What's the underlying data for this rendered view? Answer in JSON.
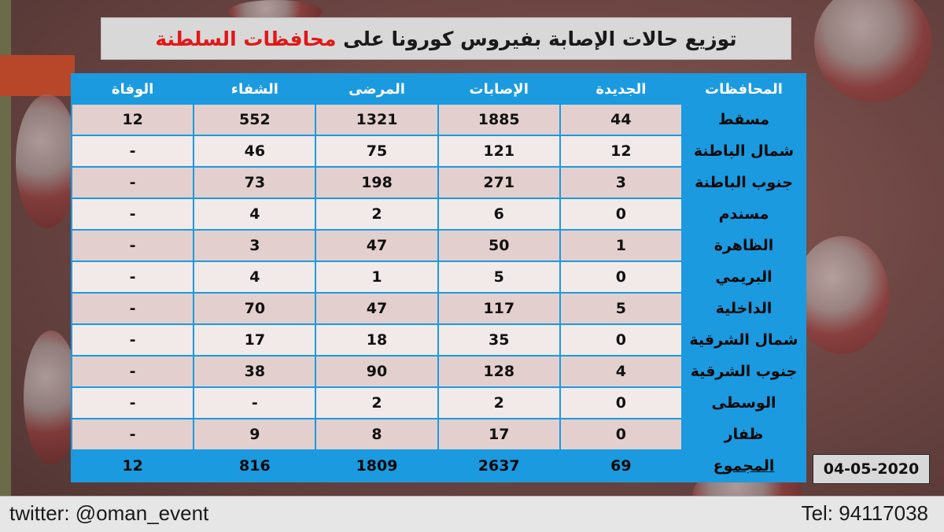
{
  "title": {
    "main": "توزيع حالات الإصابة بفيروس كورونا على",
    "highlight": "محافظات السلطنة"
  },
  "table": {
    "headers": [
      "المحافظات",
      "الجديدة",
      "الإصابات",
      "المرضى",
      "الشفاء",
      "الوفاة"
    ],
    "rows": [
      [
        "مسقط",
        "44",
        "1885",
        "1321",
        "552",
        "12"
      ],
      [
        "شمال الباطنة",
        "12",
        "121",
        "75",
        "46",
        "-"
      ],
      [
        "جنوب الباطنة",
        "3",
        "271",
        "198",
        "73",
        "-"
      ],
      [
        "مسندم",
        "0",
        "6",
        "2",
        "4",
        "-"
      ],
      [
        "الظاهرة",
        "1",
        "50",
        "47",
        "3",
        "-"
      ],
      [
        "البريمي",
        "0",
        "5",
        "1",
        "4",
        "-"
      ],
      [
        "الداخلية",
        "5",
        "117",
        "47",
        "70",
        "-"
      ],
      [
        "شمال الشرقية",
        "0",
        "35",
        "18",
        "17",
        "-"
      ],
      [
        "جنوب الشرقية",
        "4",
        "128",
        "90",
        "38",
        "-"
      ],
      [
        "الوسطى",
        "0",
        "2",
        "2",
        "-",
        "-"
      ],
      [
        "ظفار",
        "0",
        "17",
        "8",
        "9",
        "-"
      ]
    ],
    "total": [
      "المجموع",
      "69",
      "2637",
      "1809",
      "816",
      "12"
    ]
  },
  "date": "04-05-2020",
  "footer": {
    "twitter": "twitter: @oman_event",
    "tel": "Tel: 94117038"
  },
  "colors": {
    "table_blue": "#1b9ae0",
    "title_red": "#e01818",
    "row_odd": "#e3d0ce",
    "row_even": "#f2eae9"
  }
}
